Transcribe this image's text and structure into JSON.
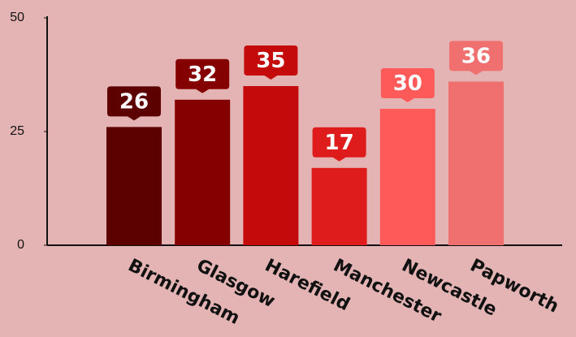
{
  "chart_data": {
    "type": "bar",
    "categories": [
      "Birmingham",
      "Glasgow",
      "Harefield",
      "Manchester",
      "Newcastle",
      "Papworth"
    ],
    "values": [
      26,
      32,
      35,
      17,
      30,
      36
    ],
    "colors": [
      "#5c0000",
      "#850000",
      "#c40a0a",
      "#de1c1c",
      "#ff5a5a",
      "#f07070"
    ],
    "ylim": [
      0,
      50
    ],
    "yticks": [
      0,
      25,
      50
    ]
  }
}
